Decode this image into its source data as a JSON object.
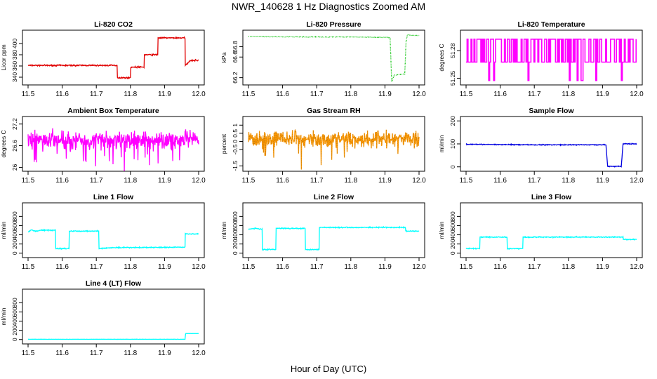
{
  "title": "NWR_140628  1 Hz Diagnostics Zoomed AM",
  "x_axis_label": "Hour of Day (UTC)",
  "chart_data": [
    {
      "id": "co2",
      "type": "line",
      "title": "Li-820 CO2",
      "ylabel": "Licor ppm",
      "color": "#e00000",
      "xlim": [
        11.5,
        12.0
      ],
      "ylim": [
        330,
        420
      ],
      "yticks": [
        340,
        360,
        380,
        400
      ],
      "noise": 1.0,
      "style": "line",
      "x": [
        11.5,
        11.761,
        11.761,
        11.8,
        11.8,
        11.84,
        11.84,
        11.88,
        11.88,
        11.96,
        11.96,
        11.975,
        12.0
      ],
      "y": [
        361,
        361,
        339,
        339,
        358,
        358,
        380,
        380,
        410,
        410,
        360,
        370,
        370
      ]
    },
    {
      "id": "pressure",
      "type": "line",
      "title": "Li-820 Pressure",
      "ylabel": "kPa",
      "color": "#00c000",
      "xlim": [
        11.5,
        12.0
      ],
      "ylim": [
        66.1,
        67.08
      ],
      "yticks": [
        66.2,
        66.6,
        66.8
      ],
      "noise": 0.004,
      "style": "dots",
      "x": [
        11.5,
        11.6,
        11.7,
        11.8,
        11.9,
        11.915,
        11.92,
        11.927,
        11.958,
        11.962,
        11.966,
        11.98,
        12.0
      ],
      "y": [
        67.0,
        66.99,
        66.99,
        66.99,
        66.98,
        66.98,
        66.12,
        66.25,
        66.27,
        66.9,
        67.03,
        67.02,
        67.02
      ]
    },
    {
      "id": "temperature",
      "type": "line",
      "title": "Li-820 Temperature",
      "ylabel": "degrees C",
      "color": "#ff00ff",
      "xlim": [
        11.5,
        12.0
      ],
      "ylim": [
        51.245,
        51.3
      ],
      "yticks": [
        51.25,
        51.28
      ],
      "style": "flicker",
      "levels": [
        51.2925,
        51.2675,
        51.2475
      ]
    },
    {
      "id": "ambient",
      "type": "line",
      "title": "Ambient Box Temperature",
      "ylabel": "degrees C",
      "color": "#ff00ff",
      "xlim": [
        11.5,
        12.0
      ],
      "ylim": [
        25.95,
        27.35
      ],
      "yticks": [
        26.0,
        26.6,
        27.2
      ],
      "noise": 0.22,
      "style": "line",
      "x": [
        11.5,
        12.0
      ],
      "y": [
        26.75,
        26.75
      ]
    },
    {
      "id": "rh",
      "type": "line",
      "title": "Gas Stream RH",
      "ylabel": "percent",
      "color": "#ff9900",
      "xlim": [
        11.5,
        12.0
      ],
      "ylim": [
        -1.7,
        1.4
      ],
      "yticks": [
        -1.5,
        -0.5,
        0.0,
        0.5,
        1.0
      ],
      "noise": 0.42,
      "style": "line",
      "x": [
        11.5,
        12.0
      ],
      "y": [
        0.15,
        0.15
      ]
    },
    {
      "id": "sample-flow",
      "type": "line",
      "title": "Sample Flow",
      "ylabel": "ml/min",
      "color": "#0000e0",
      "xlim": [
        11.5,
        12.0
      ],
      "ylim": [
        -10,
        210
      ],
      "yticks": [
        0,
        100,
        200
      ],
      "noise": 1.5,
      "style": "line",
      "x": [
        11.5,
        11.7,
        11.91,
        11.915,
        11.955,
        11.96,
        12.0
      ],
      "y": [
        98,
        96,
        96,
        2,
        2,
        100,
        100
      ]
    },
    {
      "id": "line1",
      "type": "line",
      "title": "Line 1 Flow",
      "ylabel": "ml/min",
      "color": "#00ffff",
      "xlim": [
        11.5,
        12.0
      ],
      "ylim": [
        -50,
        1050
      ],
      "yticks": [
        0,
        200,
        400,
        600,
        800
      ],
      "noise": 9,
      "style": "line",
      "x": [
        11.5,
        11.51,
        11.52,
        11.54,
        11.58,
        11.58,
        11.62,
        11.62,
        11.707,
        11.707,
        11.75,
        11.96,
        11.96,
        12.0
      ],
      "y": [
        460,
        510,
        480,
        500,
        500,
        100,
        100,
        480,
        480,
        100,
        120,
        130,
        420,
        420
      ]
    },
    {
      "id": "line2",
      "type": "line",
      "title": "Line 2 Flow",
      "ylabel": "ml/min",
      "color": "#00ffff",
      "xlim": [
        11.5,
        12.0
      ],
      "ylim": [
        -50,
        1050
      ],
      "yticks": [
        0,
        200,
        400,
        600,
        800
      ],
      "noise": 9,
      "style": "line",
      "x": [
        11.5,
        11.52,
        11.54,
        11.54,
        11.58,
        11.58,
        11.66,
        11.666,
        11.666,
        11.707,
        11.707,
        11.96,
        11.96,
        12.0
      ],
      "y": [
        520,
        540,
        520,
        80,
        80,
        540,
        540,
        540,
        80,
        80,
        560,
        560,
        480,
        480
      ]
    },
    {
      "id": "line3",
      "type": "line",
      "title": "Line 3 Flow",
      "ylabel": "ml/min",
      "color": "#00ffff",
      "xlim": [
        11.5,
        12.0
      ],
      "ylim": [
        -50,
        1050
      ],
      "yticks": [
        0,
        200,
        400,
        600,
        800
      ],
      "noise": 9,
      "style": "line",
      "x": [
        11.5,
        11.54,
        11.54,
        11.62,
        11.62,
        11.666,
        11.666,
        11.96,
        11.96,
        12.0
      ],
      "y": [
        100,
        100,
        350,
        350,
        100,
        100,
        350,
        350,
        300,
        300
      ]
    },
    {
      "id": "line4",
      "type": "line",
      "title": "Line 4 (LT) Flow",
      "ylabel": "ml/min",
      "color": "#00ffff",
      "xlim": [
        11.5,
        12.0
      ],
      "ylim": [
        -50,
        1050
      ],
      "yticks": [
        0,
        200,
        400,
        600,
        800
      ],
      "noise": 2,
      "style": "line",
      "x": [
        11.5,
        11.96,
        11.962,
        12.0
      ],
      "y": [
        5,
        5,
        130,
        130
      ]
    }
  ]
}
